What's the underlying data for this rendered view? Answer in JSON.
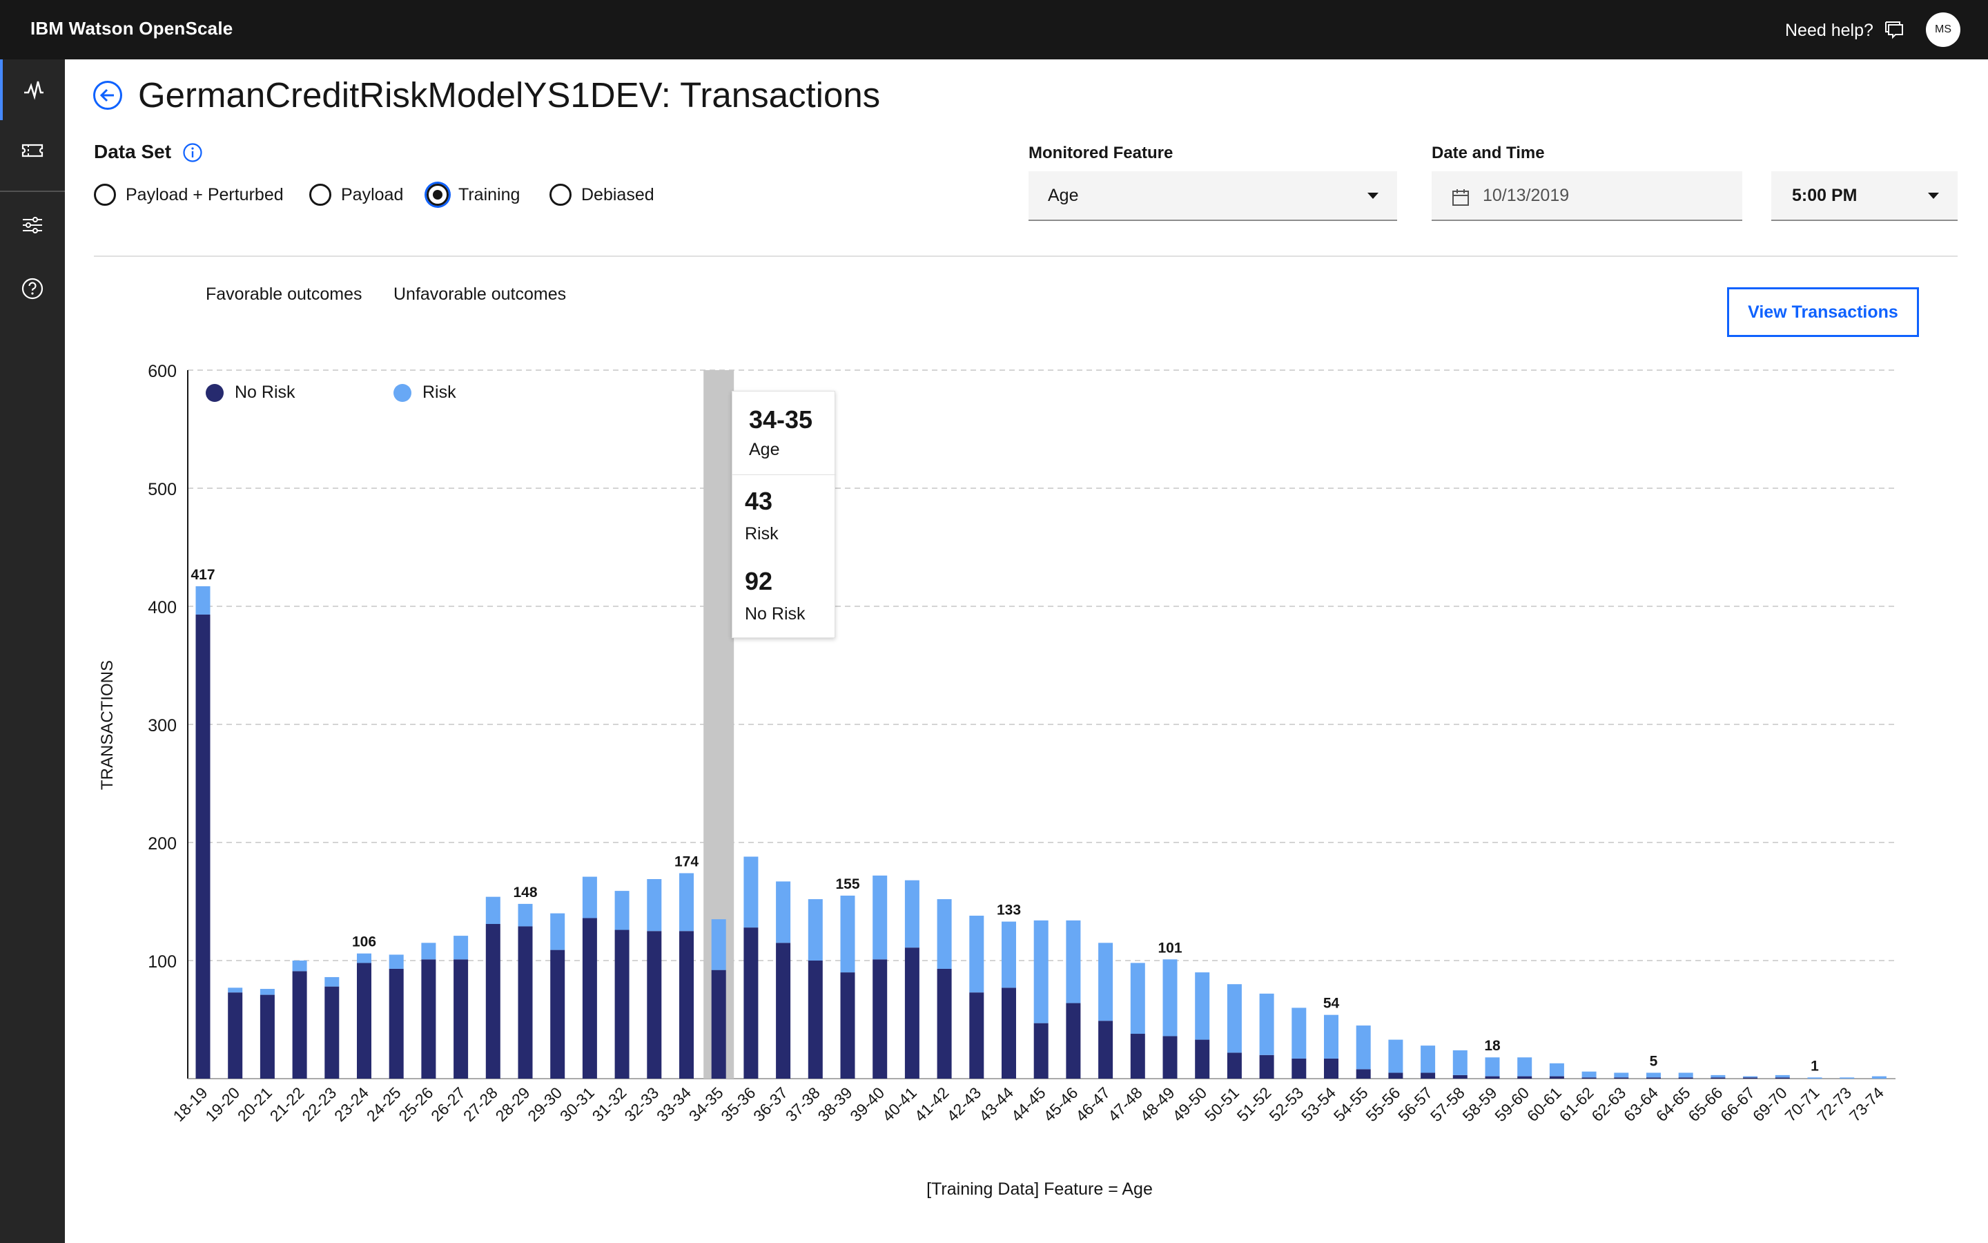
{
  "app": {
    "title": "IBM Watson OpenScale",
    "help_label": "Need help?",
    "avatar_initials": "MS"
  },
  "sidenav": {
    "items": [
      "activity-icon",
      "tickets-icon",
      "settings-sliders-icon",
      "help-icon"
    ]
  },
  "page": {
    "title": "GermanCreditRiskModelYS1DEV: Transactions"
  },
  "dataset": {
    "label": "Data Set",
    "options": [
      {
        "label": "Payload + Perturbed",
        "selected": false
      },
      {
        "label": "Payload",
        "selected": false
      },
      {
        "label": "Training",
        "selected": true
      },
      {
        "label": "Debiased",
        "selected": false
      }
    ]
  },
  "monitored_feature": {
    "label": "Monitored Feature",
    "value": "Age"
  },
  "date_time": {
    "label": "Date and Time",
    "date": "10/13/2019",
    "time": "5:00 PM"
  },
  "actions": {
    "view_transactions": "View Transactions"
  },
  "legend": {
    "favorable_title": "Favorable outcomes",
    "favorable_item": "No Risk",
    "unfavorable_title": "Unfavorable outcomes",
    "unfavorable_item": "Risk",
    "colors": {
      "no_risk": "#262a6e",
      "risk": "#68a8f5"
    }
  },
  "tooltip": {
    "range": "34-35",
    "feature": "Age",
    "risk_value": "43",
    "risk_label": "Risk",
    "norisk_value": "92",
    "norisk_label": "No Risk"
  },
  "chart_data": {
    "type": "bar",
    "stacked": true,
    "ylabel": "TRANSACTIONS",
    "xlabel": "[Training Data] Feature = Age",
    "ylim": [
      0,
      600
    ],
    "yticks": [
      100,
      200,
      300,
      400,
      500,
      600
    ],
    "grid": true,
    "highlighted_category": "34-35",
    "categories": [
      "18-19",
      "19-20",
      "20-21",
      "21-22",
      "22-23",
      "23-24",
      "24-25",
      "25-26",
      "26-27",
      "27-28",
      "28-29",
      "29-30",
      "30-31",
      "31-32",
      "32-33",
      "33-34",
      "34-35",
      "35-36",
      "36-37",
      "37-38",
      "38-39",
      "39-40",
      "40-41",
      "41-42",
      "42-43",
      "43-44",
      "44-45",
      "45-46",
      "46-47",
      "47-48",
      "48-49",
      "49-50",
      "50-51",
      "51-52",
      "52-53",
      "53-54",
      "54-55",
      "55-56",
      "56-57",
      "57-58",
      "58-59",
      "59-60",
      "60-61",
      "61-62",
      "62-63",
      "63-64",
      "64-65",
      "65-66",
      "66-67",
      "69-70",
      "70-71",
      "72-73",
      "73-74"
    ],
    "series": [
      {
        "name": "No Risk",
        "values": [
          393,
          73,
          71,
          91,
          78,
          98,
          93,
          101,
          101,
          131,
          129,
          109,
          136,
          126,
          125,
          125,
          92,
          128,
          115,
          100,
          90,
          101,
          111,
          93,
          73,
          77,
          47,
          64,
          49,
          38,
          36,
          33,
          22,
          20,
          17,
          17,
          8,
          5,
          5,
          3,
          2,
          2,
          2,
          1,
          1,
          1,
          1,
          1,
          1,
          1,
          0,
          0,
          0
        ]
      },
      {
        "name": "Risk",
        "values": [
          24,
          4,
          5,
          9,
          8,
          8,
          12,
          14,
          20,
          23,
          19,
          31,
          35,
          33,
          44,
          49,
          43,
          60,
          52,
          52,
          65,
          71,
          57,
          59,
          65,
          56,
          87,
          70,
          66,
          60,
          65,
          57,
          58,
          52,
          43,
          37,
          37,
          28,
          23,
          21,
          16,
          16,
          11,
          5,
          4,
          4,
          4,
          2,
          1,
          2,
          1,
          1,
          2
        ]
      }
    ],
    "data_labels": {
      "18-19": "417",
      "23-24": "106",
      "28-29": "148",
      "33-34": "174",
      "38-39": "155",
      "43-44": "133",
      "48-49": "101",
      "53-54": "54",
      "58-59": "18",
      "63-64": "5",
      "70-71": "1"
    }
  }
}
